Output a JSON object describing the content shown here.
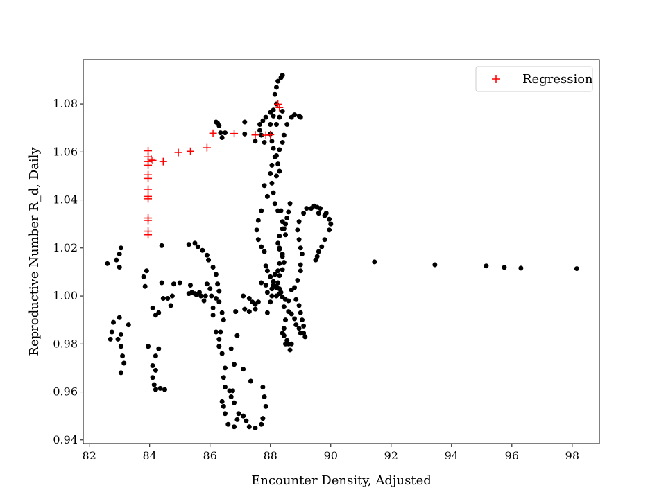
{
  "chart_data": {
    "type": "scatter",
    "title": "",
    "xlabel": "Encounter Density, Adjusted",
    "ylabel": "Reproductive Number R_d, Daily",
    "xlim": [
      81.8,
      98.9
    ],
    "ylim": [
      0.9385,
      1.0985
    ],
    "xticks": [
      82,
      84,
      86,
      88,
      90,
      92,
      94,
      96,
      98
    ],
    "yticks": [
      0.94,
      0.96,
      0.98,
      1.0,
      1.02,
      1.04,
      1.06,
      1.08
    ],
    "xtick_labels": [
      "82",
      "84",
      "86",
      "88",
      "90",
      "92",
      "94",
      "96",
      "98"
    ],
    "ytick_labels": [
      "0.94",
      "0.96",
      "0.98",
      "1.00",
      "1.02",
      "1.04",
      "1.06",
      "1.08"
    ],
    "grid": false,
    "legend_position": "top-right",
    "series": [
      {
        "marker": "dot",
        "color": "#000000",
        "points": [
          [
            82.6,
            1.0135
          ],
          [
            82.9,
            1.015
          ],
          [
            83.0,
            1.0175
          ],
          [
            83.05,
            1.02
          ],
          [
            83.0,
            1.012
          ],
          [
            82.8,
            0.989
          ],
          [
            82.75,
            0.985
          ],
          [
            82.7,
            0.982
          ],
          [
            82.95,
            0.982
          ],
          [
            83.05,
            0.979
          ],
          [
            83.1,
            0.975
          ],
          [
            83.15,
            0.972
          ],
          [
            83.05,
            0.968
          ],
          [
            83.0,
            0.991
          ],
          [
            83.3,
            0.988
          ],
          [
            83.05,
            0.984
          ],
          [
            83.8,
            1.008
          ],
          [
            83.85,
            1.004
          ],
          [
            83.9,
            1.0105
          ],
          [
            83.95,
            0.979
          ],
          [
            84.1,
            0.971
          ],
          [
            84.2,
            0.975
          ],
          [
            84.3,
            0.978
          ],
          [
            84.15,
            0.963
          ],
          [
            84.2,
            0.961
          ],
          [
            84.35,
            0.9615
          ],
          [
            84.5,
            0.961
          ],
          [
            84.1,
            0.966
          ],
          [
            84.2,
            0.969
          ],
          [
            84.1,
            0.995
          ],
          [
            84.2,
            0.992
          ],
          [
            84.3,
            0.993
          ],
          [
            84.45,
            0.999
          ],
          [
            84.6,
            0.999
          ],
          [
            84.75,
            1.0
          ],
          [
            84.7,
            0.996
          ],
          [
            84.8,
            1.005
          ],
          [
            84.4,
            1.0055
          ],
          [
            85.0,
            1.0055
          ],
          [
            84.4,
            1.021
          ],
          [
            85.3,
            1.0215
          ],
          [
            85.5,
            1.022
          ],
          [
            85.6,
            1.0205
          ],
          [
            85.75,
            1.019
          ],
          [
            85.9,
            1.017
          ],
          [
            85.95,
            1.015
          ],
          [
            86.1,
            1.012
          ],
          [
            86.2,
            1.009
          ],
          [
            86.25,
            1.005
          ],
          [
            86.3,
            1.002
          ],
          [
            86.2,
            0.999
          ],
          [
            86.0,
            1.003
          ],
          [
            86.05,
            1.0
          ],
          [
            85.35,
            1.0045
          ],
          [
            85.3,
            1.001
          ],
          [
            85.4,
            1.0015
          ],
          [
            85.5,
            1.001
          ],
          [
            85.55,
            1.0005
          ],
          [
            85.65,
            1.0015
          ],
          [
            85.7,
            1.0
          ],
          [
            85.8,
            0.998
          ],
          [
            85.85,
            1.0
          ],
          [
            85.9,
            1.005
          ],
          [
            86.1,
            0.995
          ],
          [
            86.1,
            0.992
          ],
          [
            86.3,
            0.982
          ],
          [
            86.3,
            0.979
          ],
          [
            86.35,
            0.985
          ],
          [
            86.2,
            0.985
          ],
          [
            86.4,
            0.976
          ],
          [
            86.5,
            0.97
          ],
          [
            86.45,
            0.966
          ],
          [
            86.5,
            0.962
          ],
          [
            86.4,
            0.956
          ],
          [
            86.45,
            0.954
          ],
          [
            86.5,
            0.951
          ],
          [
            86.6,
            0.9465
          ],
          [
            86.8,
            0.9455
          ],
          [
            86.9,
            0.9485
          ],
          [
            86.95,
            0.951
          ],
          [
            87.1,
            0.95
          ],
          [
            87.2,
            0.948
          ],
          [
            87.3,
            0.9455
          ],
          [
            87.5,
            0.945
          ],
          [
            87.7,
            0.9465
          ],
          [
            87.75,
            0.949
          ],
          [
            87.85,
            0.954
          ],
          [
            87.8,
            0.958
          ],
          [
            87.75,
            0.962
          ],
          [
            86.3,
            0.9975
          ],
          [
            86.4,
            0.993
          ],
          [
            86.45,
            0.99
          ],
          [
            86.7,
            0.978
          ],
          [
            86.8,
            0.9715
          ],
          [
            86.9,
            0.9835
          ],
          [
            86.85,
            0.9935
          ],
          [
            87.1,
            1.0
          ],
          [
            87.3,
            0.999
          ],
          [
            87.4,
            0.9975
          ],
          [
            87.5,
            0.9965
          ],
          [
            87.6,
            0.9975
          ],
          [
            87.5,
            0.9945
          ],
          [
            87.3,
            0.9935
          ],
          [
            87.15,
            0.9945
          ],
          [
            87.35,
            0.9645
          ],
          [
            87.1,
            0.9695
          ],
          [
            86.65,
            0.9605
          ],
          [
            86.7,
            0.958
          ],
          [
            86.8,
            0.9555
          ],
          [
            86.75,
            0.9605
          ],
          [
            87.9,
            0.993
          ],
          [
            88.0,
            0.9975
          ],
          [
            88.05,
            1.0
          ],
          [
            88.2,
            1.0
          ],
          [
            87.9,
            1.0015
          ],
          [
            88.05,
            1.003
          ],
          [
            88.2,
            1.004
          ],
          [
            88.3,
            1.003
          ],
          [
            88.35,
            1.0015
          ],
          [
            88.4,
            0.9995
          ],
          [
            88.5,
            0.9985
          ],
          [
            88.6,
            0.998
          ],
          [
            88.45,
            0.9955
          ],
          [
            88.6,
            0.9935
          ],
          [
            88.7,
            0.9925
          ],
          [
            88.8,
            0.9905
          ],
          [
            88.85,
            0.988
          ],
          [
            88.95,
            0.9865
          ],
          [
            89.0,
            0.9845
          ],
          [
            88.45,
            0.9835
          ],
          [
            88.55,
            0.9815
          ],
          [
            88.6,
            0.98
          ],
          [
            88.65,
            0.9775
          ],
          [
            88.7,
            0.98
          ],
          [
            88.5,
            0.98
          ],
          [
            88.4,
            0.9845
          ],
          [
            88.45,
            0.9865
          ],
          [
            88.5,
            0.99
          ],
          [
            88.1,
            1.0045
          ],
          [
            88.25,
            1.0055
          ],
          [
            88.3,
            1.0085
          ],
          [
            88.4,
            1.011
          ],
          [
            88.45,
            1.014
          ],
          [
            88.4,
            1.0175
          ],
          [
            88.3,
            1.02
          ],
          [
            88.25,
            1.022
          ],
          [
            88.3,
            1.025
          ],
          [
            88.4,
            1.028
          ],
          [
            88.5,
            1.03
          ],
          [
            88.55,
            1.0325
          ],
          [
            88.6,
            1.035
          ],
          [
            88.65,
            1.0385
          ],
          [
            88.2,
            1.05
          ],
          [
            88.3,
            1.052
          ],
          [
            88.25,
            1.055
          ],
          [
            88.2,
            1.0585
          ],
          [
            88.3,
            1.061
          ],
          [
            88.4,
            1.064
          ],
          [
            88.45,
            1.067
          ],
          [
            88.55,
            1.0715
          ],
          [
            88.7,
            1.0745
          ],
          [
            88.8,
            1.0755
          ],
          [
            88.95,
            1.075
          ],
          [
            89.0,
            1.0745
          ],
          [
            88.4,
            1.077
          ],
          [
            88.3,
            1.0745
          ],
          [
            88.2,
            1.0715
          ],
          [
            88.2,
            1.08
          ],
          [
            88.15,
            1.084
          ],
          [
            88.2,
            1.087
          ],
          [
            88.25,
            1.0895
          ],
          [
            88.35,
            1.091
          ],
          [
            88.4,
            1.092
          ],
          [
            87.75,
            1.073
          ],
          [
            87.85,
            1.0745
          ],
          [
            88.0,
            1.0765
          ],
          [
            88.1,
            1.0775
          ],
          [
            88.1,
            1.075
          ],
          [
            88.0,
            1.0715
          ],
          [
            88.0,
            1.0675
          ],
          [
            88.05,
            1.0645
          ],
          [
            88.1,
            1.0615
          ],
          [
            88.15,
            1.058
          ],
          [
            88.05,
            1.0545
          ],
          [
            88.0,
            1.051
          ],
          [
            88.05,
            1.047
          ],
          [
            88.1,
            1.043
          ],
          [
            88.15,
            1.0385
          ],
          [
            88.25,
            1.0355
          ],
          [
            88.35,
            1.0355
          ],
          [
            88.4,
            1.031
          ],
          [
            88.45,
            1.028
          ],
          [
            88.5,
            1.0255
          ],
          [
            87.8,
            1.064
          ],
          [
            87.7,
            1.067
          ],
          [
            87.65,
            1.069
          ],
          [
            87.65,
            1.0715
          ],
          [
            87.5,
            1.0645
          ],
          [
            87.15,
            1.0675
          ],
          [
            87.15,
            1.0725
          ],
          [
            88.3,
            1.0195
          ],
          [
            88.4,
            1.0165
          ],
          [
            88.3,
            1.0135
          ],
          [
            88.25,
            1.0105
          ],
          [
            88.15,
            1.009
          ],
          [
            88.1,
            1.006
          ],
          [
            88.2,
            1.0035
          ],
          [
            88.3,
            1.001
          ],
          [
            87.8,
            1.046
          ],
          [
            87.9,
            1.0415
          ],
          [
            87.7,
            1.0355
          ],
          [
            87.6,
            1.0315
          ],
          [
            87.55,
            1.0275
          ],
          [
            87.6,
            1.0235
          ],
          [
            87.7,
            1.0205
          ],
          [
            87.8,
            1.0185
          ],
          [
            87.85,
            1.0125
          ],
          [
            87.9,
            1.0105
          ],
          [
            88.0,
            1.008
          ],
          [
            87.85,
            1.0045
          ],
          [
            87.7,
            1.0055
          ],
          [
            88.7,
            1.0025
          ],
          [
            88.8,
            1.0035
          ],
          [
            88.9,
            1.0065
          ],
          [
            89.0,
            1.0105
          ],
          [
            89.0,
            1.013
          ],
          [
            89.05,
            1.0175
          ],
          [
            89.0,
            1.02
          ],
          [
            88.95,
            1.0235
          ],
          [
            88.9,
            1.0275
          ],
          [
            88.95,
            1.031
          ],
          [
            89.1,
            1.0345
          ],
          [
            89.2,
            1.0365
          ],
          [
            89.35,
            1.0365
          ],
          [
            89.45,
            1.0375
          ],
          [
            89.55,
            1.037
          ],
          [
            89.65,
            1.0365
          ],
          [
            89.6,
            1.0345
          ],
          [
            89.95,
            1.032
          ],
          [
            90.0,
            1.03
          ],
          [
            89.95,
            1.0275
          ],
          [
            89.8,
            1.0235
          ],
          [
            89.7,
            1.0205
          ],
          [
            89.6,
            1.0185
          ],
          [
            89.55,
            1.0165
          ],
          [
            89.5,
            1.015
          ],
          [
            89.8,
            1.0335
          ],
          [
            89.85,
            1.0345
          ],
          [
            88.85,
            0.9985
          ],
          [
            88.95,
            0.996
          ],
          [
            89.0,
            0.993
          ],
          [
            89.05,
            0.99
          ],
          [
            89.1,
            0.9875
          ],
          [
            89.1,
            0.9845
          ],
          [
            89.15,
            0.983
          ],
          [
            86.2,
            1.0725
          ],
          [
            86.3,
            1.071
          ],
          [
            86.35,
            1.068
          ],
          [
            86.4,
            1.066
          ],
          [
            86.5,
            1.068
          ],
          [
            86.25,
            1.072
          ],
          [
            91.45,
            1.0142
          ],
          [
            93.45,
            1.013
          ],
          [
            95.15,
            1.0125
          ],
          [
            95.75,
            1.0119
          ],
          [
            96.3,
            1.0116
          ],
          [
            98.15,
            1.0114
          ]
        ]
      },
      {
        "name": "Regression",
        "marker": "plus",
        "color": "#ff0000",
        "points": [
          [
            83.95,
            1.0605
          ],
          [
            83.95,
            1.058
          ],
          [
            83.95,
            1.056
          ],
          [
            84.05,
            1.057
          ],
          [
            84.1,
            1.0565
          ],
          [
            83.95,
            1.0545
          ],
          [
            83.95,
            1.0505
          ],
          [
            83.95,
            1.049
          ],
          [
            83.95,
            1.0445
          ],
          [
            83.95,
            1.0415
          ],
          [
            83.95,
            1.0405
          ],
          [
            83.95,
            1.0325
          ],
          [
            83.95,
            1.0315
          ],
          [
            83.95,
            1.027
          ],
          [
            83.95,
            1.0255
          ],
          [
            84.45,
            1.056
          ],
          [
            84.95,
            1.0598
          ],
          [
            85.35,
            1.0603
          ],
          [
            85.9,
            1.0618
          ],
          [
            86.1,
            1.0678
          ],
          [
            86.8,
            1.0677
          ],
          [
            87.5,
            1.0671
          ],
          [
            87.85,
            1.067
          ],
          [
            88.0,
            1.0672
          ],
          [
            88.25,
            1.0799
          ],
          [
            88.3,
            1.0785
          ]
        ]
      }
    ]
  }
}
